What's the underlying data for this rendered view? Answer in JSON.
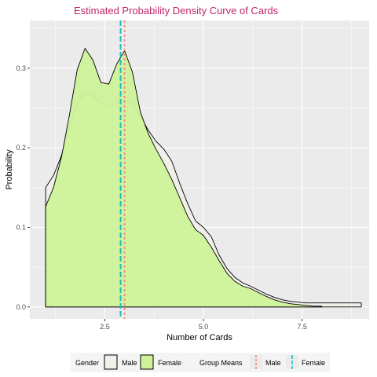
{
  "chart_data": {
    "type": "area",
    "title": "Estimated Probability Density Curve of Cards",
    "xlabel": "Number of Cards",
    "ylabel": "Probability",
    "xlim": [
      0.6,
      9.2
    ],
    "ylim": [
      -0.015,
      0.36
    ],
    "x_ticks": [
      2.5,
      5.0,
      7.5
    ],
    "x_tick_labels": [
      "2.5",
      "5.0",
      "7.5"
    ],
    "y_ticks": [
      0.0,
      0.1,
      0.2,
      0.3
    ],
    "y_tick_labels": [
      "0.0",
      "0.1",
      "0.2",
      "0.3"
    ],
    "grid": true,
    "legend_position": "bottom",
    "colors": {
      "panel": "#ebebeb",
      "grid": "#ffffff",
      "title": "#c1246b",
      "male_fill": "#f2f0ea",
      "female_fill": "#cdf29a",
      "outline": "#000000",
      "male_mean": "#f4877e",
      "female_mean": "#1cbcc0"
    },
    "series": [
      {
        "name": "Male",
        "points": [
          [
            1.0,
            0.0
          ],
          [
            1.0,
            0.15
          ],
          [
            1.2,
            0.165
          ],
          [
            1.4,
            0.19
          ],
          [
            1.6,
            0.225
          ],
          [
            1.8,
            0.255
          ],
          [
            2.0,
            0.268
          ],
          [
            2.2,
            0.265
          ],
          [
            2.4,
            0.256
          ],
          [
            2.6,
            0.252
          ],
          [
            2.8,
            0.256
          ],
          [
            3.0,
            0.26
          ],
          [
            3.2,
            0.255
          ],
          [
            3.4,
            0.24
          ],
          [
            3.6,
            0.222
          ],
          [
            3.8,
            0.208
          ],
          [
            4.0,
            0.198
          ],
          [
            4.2,
            0.183
          ],
          [
            4.4,
            0.155
          ],
          [
            4.6,
            0.13
          ],
          [
            4.8,
            0.108
          ],
          [
            5.0,
            0.1
          ],
          [
            5.2,
            0.088
          ],
          [
            5.4,
            0.065
          ],
          [
            5.6,
            0.048
          ],
          [
            5.8,
            0.037
          ],
          [
            6.0,
            0.03
          ],
          [
            6.2,
            0.026
          ],
          [
            6.4,
            0.021
          ],
          [
            6.6,
            0.016
          ],
          [
            6.8,
            0.012
          ],
          [
            7.0,
            0.009
          ],
          [
            7.2,
            0.007
          ],
          [
            7.4,
            0.006
          ],
          [
            7.6,
            0.005
          ],
          [
            7.8,
            0.005
          ],
          [
            8.0,
            0.005
          ],
          [
            8.2,
            0.005
          ],
          [
            8.4,
            0.005
          ],
          [
            8.6,
            0.005
          ],
          [
            8.8,
            0.005
          ],
          [
            9.0,
            0.005
          ],
          [
            9.0,
            0.0
          ]
        ]
      },
      {
        "name": "Female",
        "points": [
          [
            1.0,
            0.0
          ],
          [
            1.0,
            0.126
          ],
          [
            1.2,
            0.15
          ],
          [
            1.4,
            0.188
          ],
          [
            1.6,
            0.24
          ],
          [
            1.8,
            0.298
          ],
          [
            2.0,
            0.325
          ],
          [
            2.2,
            0.31
          ],
          [
            2.4,
            0.282
          ],
          [
            2.6,
            0.28
          ],
          [
            2.8,
            0.305
          ],
          [
            3.0,
            0.322
          ],
          [
            3.2,
            0.295
          ],
          [
            3.4,
            0.245
          ],
          [
            3.6,
            0.218
          ],
          [
            3.8,
            0.198
          ],
          [
            4.0,
            0.18
          ],
          [
            4.2,
            0.16
          ],
          [
            4.4,
            0.137
          ],
          [
            4.6,
            0.114
          ],
          [
            4.8,
            0.097
          ],
          [
            5.0,
            0.09
          ],
          [
            5.2,
            0.075
          ],
          [
            5.4,
            0.058
          ],
          [
            5.6,
            0.042
          ],
          [
            5.8,
            0.032
          ],
          [
            6.0,
            0.026
          ],
          [
            6.2,
            0.023
          ],
          [
            6.4,
            0.018
          ],
          [
            6.6,
            0.013
          ],
          [
            6.8,
            0.009
          ],
          [
            7.0,
            0.006
          ],
          [
            7.2,
            0.004
          ],
          [
            7.4,
            0.003
          ],
          [
            7.6,
            0.002
          ],
          [
            7.8,
            0.001
          ],
          [
            8.0,
            0.001
          ],
          [
            8.0,
            0.0
          ]
        ]
      }
    ],
    "group_means": [
      {
        "name": "Male",
        "x": 3.0
      },
      {
        "name": "Female",
        "x": 2.9
      }
    ],
    "legend": {
      "fill_title": "Gender",
      "fill_items": [
        "Male",
        "Female"
      ],
      "line_title": "Group Means",
      "line_items": [
        "Male",
        "Female"
      ]
    }
  }
}
